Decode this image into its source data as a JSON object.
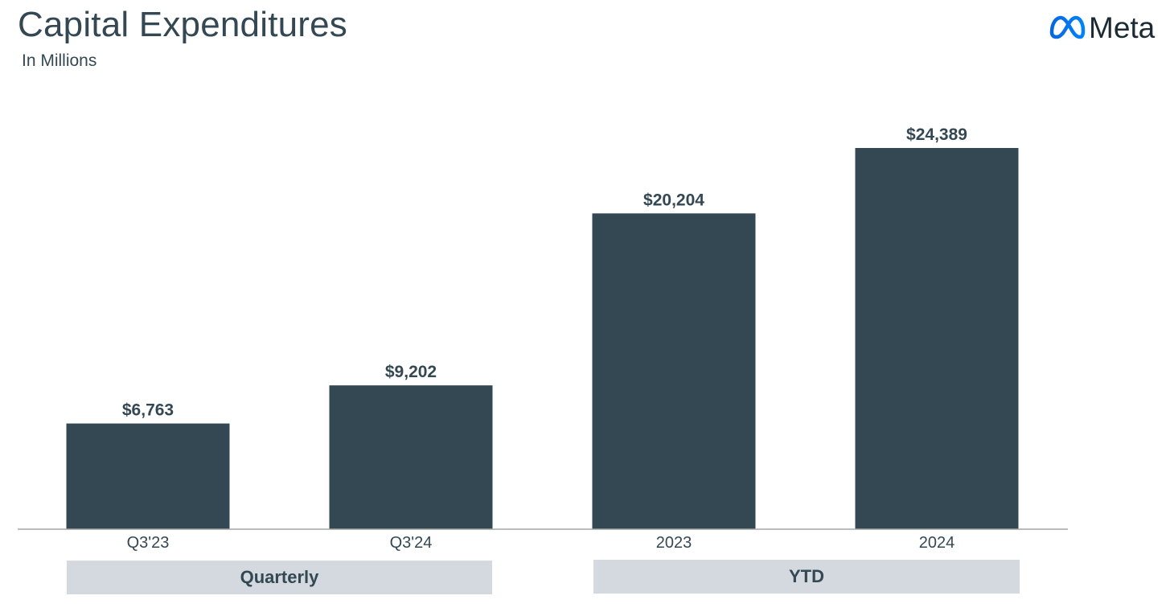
{
  "header": {
    "title": "Capital Expenditures",
    "subtitle": "In Millions"
  },
  "logo": {
    "text": "Meta",
    "icon": "meta-infinity-logo",
    "color": "#0866ff"
  },
  "colors": {
    "bar": "#344854",
    "axis": "#a6a6a6",
    "group_box": "#d3d9de",
    "text": "#344854"
  },
  "groups": [
    {
      "label": "Quarterly",
      "categories": [
        "Q3'23",
        "Q3'24"
      ]
    },
    {
      "label": "YTD",
      "categories": [
        "2023",
        "2024"
      ]
    }
  ],
  "chart_data": {
    "type": "bar",
    "title": "Capital Expenditures",
    "subtitle": "In Millions",
    "categories": [
      "Q3'23",
      "Q3'24",
      "2023",
      "2024"
    ],
    "values": [
      6763,
      9202,
      20204,
      24389
    ],
    "value_labels": [
      "$6,763",
      "$9,202",
      "$20,204",
      "$24,389"
    ],
    "xlabel": "",
    "ylabel": "",
    "ylim": [
      0,
      27000
    ],
    "grid": false,
    "legend": "none"
  }
}
